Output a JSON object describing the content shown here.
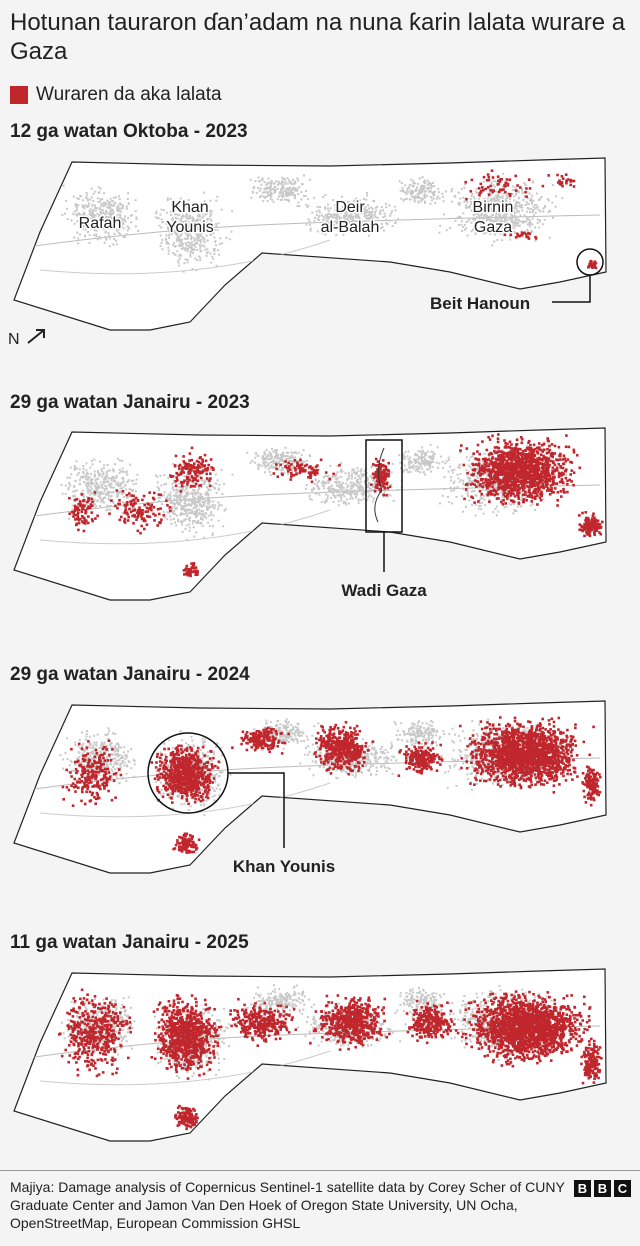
{
  "title": "Hotunan tauraron ɗan’adam na nuna ƙarin lalata wurare a Gaza",
  "legend": {
    "label": "Wuraren da aka lalata",
    "color": "#c0272d"
  },
  "north": "N",
  "panels": [
    {
      "title": "12 ga watan Oktoba - 2023",
      "places": [
        {
          "lines": [
            "Rafah"
          ]
        },
        {
          "lines": [
            "Khan",
            "Younis"
          ]
        },
        {
          "lines": [
            "Deir",
            "al-Balah"
          ]
        },
        {
          "lines": [
            "Birnin",
            "Gaza"
          ]
        }
      ],
      "annotation": "Beit Hanoun"
    },
    {
      "title": "29 ga watan Janairu - 2023",
      "annotation": "Wadi Gaza"
    },
    {
      "title": "29 ga watan Janairu - 2024",
      "annotation": "Khan Younis"
    },
    {
      "title": "11 ga watan Janairu - 2025"
    }
  ],
  "source": "Majiya:  Damage analysis of Copernicus Sentinel-1 satellite data by Corey Scher of CUNY Graduate Center and Jamon Van Den Hoek of Oregon State University, UN Ocha, OpenStreetMap, European Commission GHSL",
  "logo": [
    "B",
    "B",
    "C"
  ]
}
